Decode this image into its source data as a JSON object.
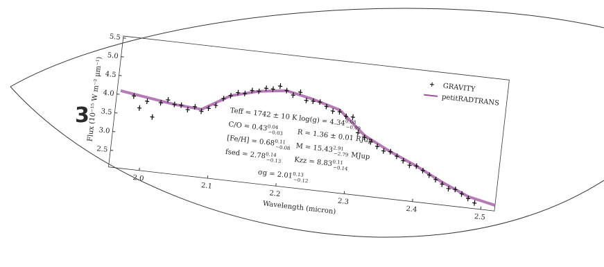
{
  "badge": "3",
  "chart_data": {
    "type": "scatter",
    "xlabel": "Wavelength (micron)",
    "ylabel": "Flux (10⁻¹⁵ W m⁻² μm⁻¹)",
    "xlim": [
      1.955,
      2.52
    ],
    "ylim": [
      2.05,
      5.55
    ],
    "xticks": [
      {
        "value": 2,
        "label": "2.0"
      },
      2.1,
      2.2,
      2.3,
      2.4,
      2.5
    ],
    "yticks": [
      2.5,
      {
        "value": 3,
        "label": "3.0"
      },
      3.5,
      {
        "value": 4,
        "label": "4.0"
      },
      4.5,
      {
        "value": 5,
        "label": "5.0"
      },
      5.5
    ],
    "legend": "upper right",
    "series": [
      {
        "name": "GRAVITY",
        "color": "#000000",
        "kind": "points",
        "x": [
          1.98,
          1.99,
          2.0,
          2.01,
          2.02,
          2.03,
          2.04,
          2.05,
          2.06,
          2.07,
          2.08,
          2.09,
          2.1,
          2.11,
          2.12,
          2.13,
          2.14,
          2.15,
          2.16,
          2.17,
          2.18,
          2.19,
          2.2,
          2.21,
          2.22,
          2.23,
          2.24,
          2.25,
          2.26,
          2.27,
          2.28,
          2.29,
          2.3,
          2.31,
          2.32,
          2.33,
          2.34,
          2.35,
          2.36,
          2.37,
          2.38,
          2.39,
          2.4,
          2.41,
          2.42,
          2.43,
          2.44,
          2.45,
          2.46,
          2.47,
          2.48,
          2.49
        ],
        "values": [
          4.0,
          3.7,
          3.9,
          3.5,
          3.9,
          4.0,
          3.9,
          3.9,
          3.8,
          3.9,
          3.8,
          3.9,
          4.0,
          4.2,
          4.3,
          4.4,
          4.4,
          4.5,
          4.5,
          4.6,
          4.6,
          4.7,
          4.6,
          4.5,
          4.6,
          4.4,
          4.4,
          4.4,
          4.3,
          4.2,
          4.2,
          4.1,
          4.1,
          3.7,
          3.6,
          3.5,
          3.4,
          3.3,
          3.3,
          3.2,
          3.1,
          3.0,
          3.0,
          2.9,
          2.8,
          2.7,
          2.6,
          2.5,
          2.5,
          2.4,
          2.3,
          2.2
        ]
      },
      {
        "name": "petitRADTRANS",
        "color": "#9b4f9b",
        "kind": "line",
        "x": [
          1.96,
          2.0,
          2.04,
          2.08,
          2.12,
          2.16,
          2.2,
          2.24,
          2.28,
          2.32,
          2.36,
          2.4,
          2.44,
          2.48,
          2.52
        ],
        "values": [
          4.1,
          4.0,
          3.9,
          3.85,
          4.3,
          4.5,
          4.6,
          4.45,
          4.25,
          3.65,
          3.3,
          3.0,
          2.65,
          2.35,
          2.2
        ]
      }
    ],
    "annotations": [
      {
        "text": "Teff = 1742 ± 10 K"
      },
      {
        "text": "C/O = 0.43",
        "sup": "0.04",
        "sub": "−0.03"
      },
      {
        "text": "[Fe/H] = 0.68",
        "sup": "0.11",
        "sub": "−0.08"
      },
      {
        "text": "fsed = 2.78",
        "sup": "0.14",
        "sub": "−0.13"
      },
      {
        "text": "log(g) = 4.34",
        "sup": "0.08",
        "sub": "−0.09"
      },
      {
        "text": "R = 1.36 ± 0.01 RJup"
      },
      {
        "text": "M = 15.43",
        "sup": "2.91",
        "sub": "−2.79",
        "unit": "MJup"
      },
      {
        "text": "Kzz = 8.83",
        "sup": "0.11",
        "sub": "−0.14"
      },
      {
        "text": "σg = 2.01",
        "sup": "0.13",
        "sub": "−0.12"
      }
    ]
  }
}
